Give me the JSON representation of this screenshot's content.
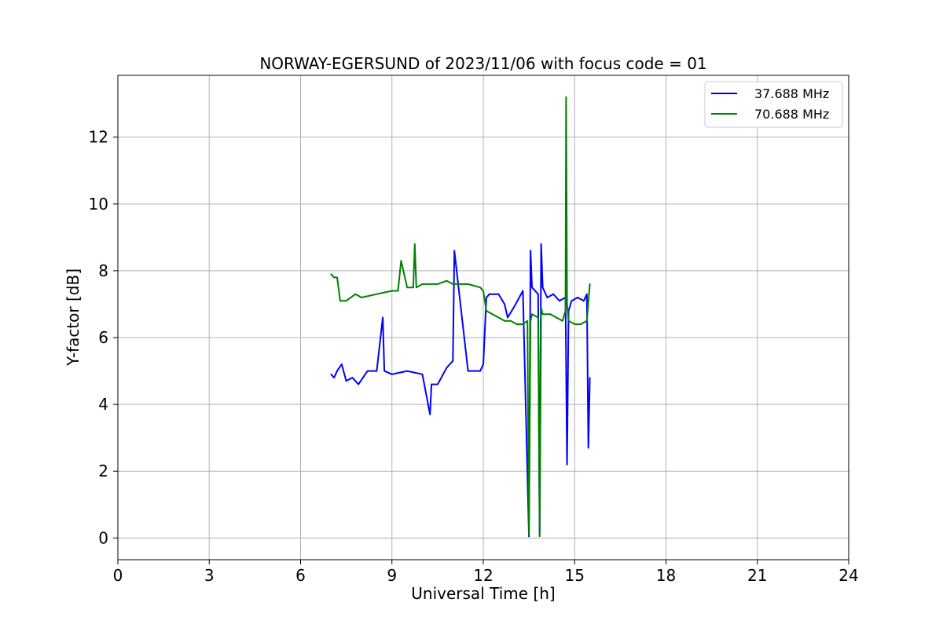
{
  "chart_data": {
    "type": "line",
    "title": "NORWAY-EGERSUND of 2023/11/06 with focus code = 01",
    "xlabel": "Universal Time [h]",
    "ylabel": "Y-factor [dB]",
    "xlim": [
      0,
      24
    ],
    "ylim": [
      -0.65,
      13.85
    ],
    "x_ticks": [
      "0",
      "3",
      "6",
      "9",
      "12",
      "15",
      "18",
      "21",
      "24"
    ],
    "y_ticks": [
      "0",
      "2",
      "4",
      "6",
      "8",
      "10",
      "12"
    ],
    "grid": true,
    "legend_position": "top-right",
    "series": [
      {
        "name": "37.688 MHz",
        "color": "#0000ff",
        "x": [
          7.0,
          7.1,
          7.2,
          7.35,
          7.5,
          7.7,
          7.9,
          8.2,
          8.5,
          8.7,
          8.75,
          9.0,
          9.5,
          10.0,
          10.25,
          10.3,
          10.5,
          10.8,
          11.0,
          11.05,
          11.5,
          11.9,
          12.0,
          12.1,
          12.2,
          12.5,
          12.7,
          12.8,
          13.0,
          13.3,
          13.5,
          13.55,
          13.6,
          13.8,
          13.85,
          13.9,
          13.95,
          14.1,
          14.3,
          14.5,
          14.7,
          14.75,
          14.8,
          14.9,
          15.1,
          15.3,
          15.4,
          15.45,
          15.5
        ],
        "y": [
          4.9,
          4.8,
          5.0,
          5.2,
          4.7,
          4.8,
          4.6,
          5.0,
          5.0,
          6.6,
          5.0,
          4.9,
          5.0,
          4.9,
          3.7,
          4.6,
          4.6,
          5.1,
          5.3,
          8.6,
          5.0,
          5.0,
          5.2,
          7.2,
          7.3,
          7.3,
          7.0,
          6.6,
          6.9,
          7.4,
          0.05,
          8.6,
          7.5,
          7.3,
          0.1,
          8.8,
          7.5,
          7.2,
          7.3,
          7.1,
          7.2,
          2.2,
          6.8,
          7.1,
          7.2,
          7.1,
          7.3,
          2.7,
          4.8
        ]
      },
      {
        "name": "70.688 MHz",
        "color": "#008000",
        "x": [
          7.0,
          7.1,
          7.2,
          7.3,
          7.5,
          7.8,
          8.0,
          8.5,
          9.0,
          9.2,
          9.3,
          9.5,
          9.7,
          9.75,
          9.8,
          10.0,
          10.5,
          10.8,
          11.0,
          11.5,
          11.9,
          12.0,
          12.1,
          12.3,
          12.5,
          12.7,
          12.9,
          13.1,
          13.3,
          13.45,
          13.5,
          13.55,
          13.6,
          13.8,
          13.85,
          13.9,
          13.95,
          14.2,
          14.4,
          14.6,
          14.7,
          14.72,
          14.75,
          14.8,
          15.0,
          15.2,
          15.4,
          15.5
        ],
        "y": [
          7.9,
          7.8,
          7.8,
          7.1,
          7.1,
          7.3,
          7.2,
          7.3,
          7.4,
          7.4,
          8.3,
          7.5,
          7.5,
          8.8,
          7.5,
          7.6,
          7.6,
          7.7,
          7.6,
          7.6,
          7.5,
          7.4,
          6.8,
          6.7,
          6.6,
          6.5,
          6.5,
          6.4,
          6.4,
          6.5,
          0.1,
          6.5,
          6.7,
          6.6,
          0.05,
          6.9,
          6.7,
          6.7,
          6.6,
          6.5,
          6.8,
          13.2,
          7.0,
          6.5,
          6.4,
          6.4,
          6.5,
          7.6
        ]
      }
    ]
  }
}
